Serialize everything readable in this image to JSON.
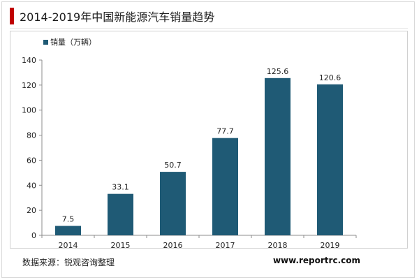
{
  "chart_data": {
    "type": "bar",
    "title": "2014-2019年中国新能源汽车销量趋势",
    "categories": [
      "2014",
      "2015",
      "2016",
      "2017",
      "2018",
      "2019"
    ],
    "series": [
      {
        "name": "销量（万辆）",
        "values": [
          7.5,
          33.1,
          50.7,
          77.7,
          125.6,
          120.6
        ]
      }
    ],
    "data_labels": [
      "7.5",
      "33.1",
      "50.7",
      "77.7",
      "125.6",
      "120.6"
    ],
    "ylim": [
      0,
      140
    ],
    "yticks": [
      "0",
      "20",
      "40",
      "60",
      "80",
      "100",
      "120",
      "140"
    ],
    "xlabel": "",
    "ylabel": "",
    "grid": false,
    "legend_position": "top-left",
    "colors": {
      "bar": "#1f5a75",
      "title_accent": "#c00000"
    }
  },
  "footer": {
    "source": "数据来源：锐观咨询整理",
    "website": "www.reportrc.com"
  }
}
